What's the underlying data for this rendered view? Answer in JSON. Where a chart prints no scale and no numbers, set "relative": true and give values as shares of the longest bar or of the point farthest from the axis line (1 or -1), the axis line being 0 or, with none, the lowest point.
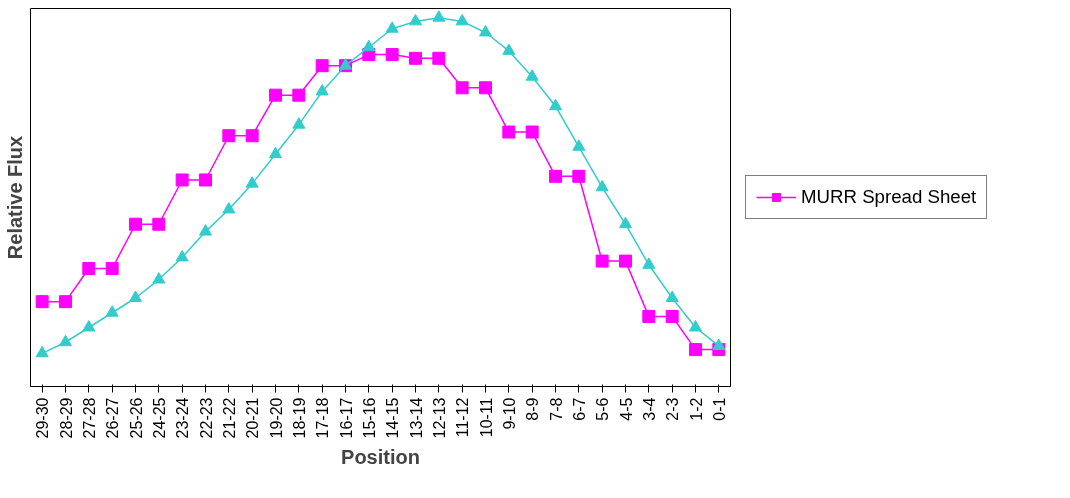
{
  "chart_data": {
    "type": "line",
    "relative": true,
    "xlabel": "Position",
    "ylabel": "Relative Flux",
    "legend": "right",
    "grid": false,
    "line_style": "solid",
    "categories": [
      "29-30",
      "28-29",
      "27-28",
      "26-27",
      "25-26",
      "24-25",
      "23-24",
      "22-23",
      "21-22",
      "20-21",
      "19-20",
      "18-19",
      "17-18",
      "16-17",
      "15-16",
      "14-15",
      "13-14",
      "12-13",
      "11-12",
      "10-11",
      "9-10",
      "8-9",
      "7-8",
      "6-7",
      "5-6",
      "4-5",
      "3-4",
      "2-3",
      "1-2",
      "0-1"
    ],
    "series": [
      {
        "name": "MURR Spread Sheet",
        "color": "#ff00ff",
        "marker": "square",
        "values": [
          0.23,
          0.23,
          0.32,
          0.32,
          0.44,
          0.44,
          0.56,
          0.56,
          0.68,
          0.68,
          0.79,
          0.79,
          0.87,
          0.87,
          0.9,
          0.9,
          0.89,
          0.89,
          0.81,
          0.81,
          0.69,
          0.69,
          0.57,
          0.57,
          0.34,
          0.34,
          0.19,
          0.19,
          0.1,
          0.1
        ]
      },
      {
        "color": "#33cccc",
        "marker": "triangle",
        "values": [
          0.09,
          0.12,
          0.16,
          0.2,
          0.24,
          0.29,
          0.35,
          0.42,
          0.48,
          0.55,
          0.63,
          0.71,
          0.8,
          0.87,
          0.92,
          0.97,
          0.99,
          1,
          0.99,
          0.96,
          0.91,
          0.84,
          0.76,
          0.65,
          0.54,
          0.44,
          0.33,
          0.24,
          0.16,
          0.11
        ]
      }
    ]
  }
}
